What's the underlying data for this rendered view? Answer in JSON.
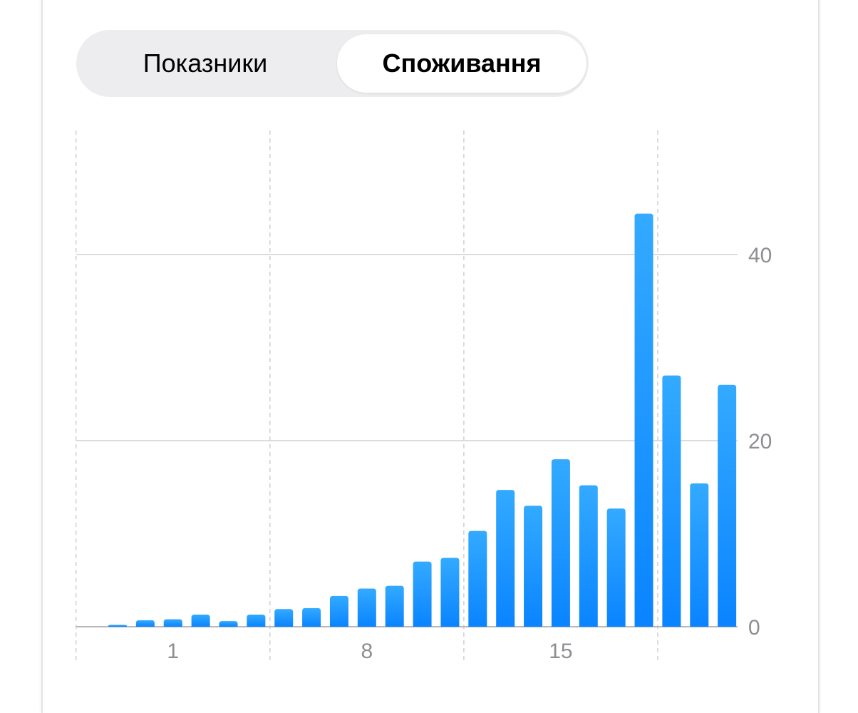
{
  "segmented_control": {
    "items": [
      {
        "label": "Показники",
        "selected": false
      },
      {
        "label": "Споживання",
        "selected": true
      }
    ]
  },
  "colors": {
    "bar_top": "#33aaff",
    "bar_bottom": "#0a84ff",
    "grid": "#d1d1d6",
    "tick_text": "#8e8e93"
  },
  "chart_data": {
    "type": "bar",
    "values": [
      0.2,
      0.7,
      0.8,
      1.3,
      0.6,
      1.3,
      1.9,
      2.0,
      3.3,
      4.1,
      4.4,
      7.0,
      7.4,
      10.3,
      14.7,
      13.0,
      18.0,
      15.2,
      12.7,
      44.4,
      27.0,
      15.4,
      26.0
    ],
    "x_ticks": [
      {
        "index": 2,
        "label": "1"
      },
      {
        "index": 9,
        "label": "8"
      },
      {
        "index": 16,
        "label": "15"
      }
    ],
    "y_ticks": [
      {
        "value": 0,
        "label": "0"
      },
      {
        "value": 20,
        "label": "20"
      },
      {
        "value": 40,
        "label": "40"
      }
    ],
    "ylim": [
      0,
      40
    ],
    "y_axis_position": "right",
    "grid": true,
    "title": "",
    "xlabel": "",
    "ylabel": ""
  }
}
